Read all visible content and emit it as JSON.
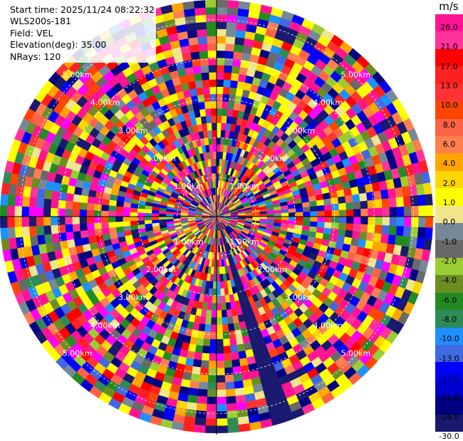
{
  "info": {
    "start_time": "Start time: 2025/11/24 08:22:32",
    "site": "WLS200s-181",
    "field": "Field: VEL",
    "elevation": "Elevation(deg): 35.00",
    "nrays": "NRays: 120"
  },
  "chart_data": {
    "type": "heatmap",
    "projection": "polar-ppi",
    "field": "VEL",
    "units": "m/s",
    "n_rays": 120,
    "n_gates": 30,
    "ring_labels": [
      "1.00km",
      "2.00km",
      "3.00km",
      "4.00km",
      "5.00km"
    ],
    "colorbar": {
      "unit": "m/s",
      "ticks": [
        "26.0",
        "21.0",
        "17.0",
        "13.0",
        "10.0",
        "8.0",
        "6.0",
        "4.0",
        "2.0",
        "1.0",
        "0.0",
        "-1.0",
        "-2.0",
        "-4.0",
        "-6.0",
        "-8.0",
        "-10.0",
        "-13.0",
        "-17.0",
        "-21.0",
        "-26.0",
        "-30.0"
      ],
      "colors": [
        "#ff1493",
        "#ff3399",
        "#ff0000",
        "#ff2020",
        "#ff3333",
        "#ff4500",
        "#ff6347",
        "#ff7f50",
        "#ffa500",
        "#ffd700",
        "#ffff00",
        "#f0e68c",
        "#778899",
        "#696969",
        "#9acd32",
        "#6b8e23",
        "#228b22",
        "#2e8b57",
        "#1e90ff",
        "#4169e1",
        "#0000ff",
        "#0000cd",
        "#000080",
        "#191970"
      ]
    }
  }
}
